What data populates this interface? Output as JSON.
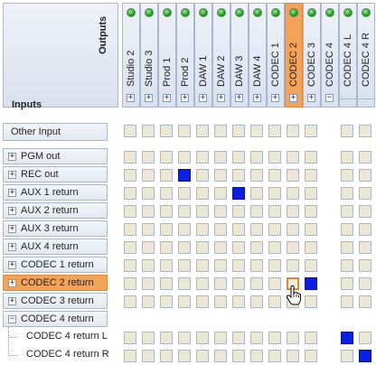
{
  "header": {
    "outputs_label": "Outputs",
    "inputs_label": "Inputs"
  },
  "outputs": [
    {
      "label": "Studio 2",
      "toggle": "+",
      "highlight": false
    },
    {
      "label": "Studio 3",
      "toggle": "+",
      "highlight": false
    },
    {
      "label": "Prod 1",
      "toggle": "+",
      "highlight": false
    },
    {
      "label": "Prod 2",
      "toggle": "+",
      "highlight": false
    },
    {
      "label": "DAW 1",
      "toggle": "+",
      "highlight": false
    },
    {
      "label": "DAW 2",
      "toggle": "+",
      "highlight": false
    },
    {
      "label": "DAW 3",
      "toggle": "+",
      "highlight": false
    },
    {
      "label": "DAW 4",
      "toggle": "+",
      "highlight": false
    },
    {
      "label": "CODEC 1",
      "toggle": "+",
      "highlight": false
    },
    {
      "label": "CODEC 2",
      "toggle": "+",
      "highlight": true
    },
    {
      "label": "CODEC 3",
      "toggle": "+",
      "highlight": false
    },
    {
      "label": "CODEC 4",
      "toggle": "−",
      "highlight": false
    },
    {
      "label": "CODEC 4 L",
      "toggle": "",
      "highlight": false
    },
    {
      "label": "CODEC 4 R",
      "toggle": "",
      "highlight": false
    }
  ],
  "other_input": {
    "label": "Other Input"
  },
  "inputs": [
    {
      "label": "PGM out",
      "toggle": "+",
      "highlight": false
    },
    {
      "label": "REC out",
      "toggle": "+",
      "highlight": false
    },
    {
      "label": "AUX 1 return",
      "toggle": "+",
      "highlight": false
    },
    {
      "label": "AUX 2 return",
      "toggle": "+",
      "highlight": false
    },
    {
      "label": "AUX 3 return",
      "toggle": "+",
      "highlight": false
    },
    {
      "label": "AUX 4 return",
      "toggle": "+",
      "highlight": false
    },
    {
      "label": "CODEC 1 return",
      "toggle": "+",
      "highlight": false
    },
    {
      "label": "CODEC 2 return",
      "toggle": "+",
      "highlight": true
    },
    {
      "label": "CODEC 3 return",
      "toggle": "+",
      "highlight": false
    },
    {
      "label": "CODEC 4 return",
      "toggle": "−",
      "highlight": false
    },
    {
      "label": "CODEC 4 return L",
      "toggle": "",
      "highlight": false
    },
    {
      "label": "CODEC 4 return R",
      "toggle": "",
      "highlight": false
    }
  ],
  "connections": [
    {
      "input": "REC out",
      "output": "Prod 2"
    },
    {
      "input": "AUX 1 return",
      "output": "DAW 3"
    },
    {
      "input": "CODEC 2 return",
      "output": "CODEC 3"
    },
    {
      "input": "CODEC 4 return L",
      "output": "CODEC 4 L"
    },
    {
      "input": "CODEC 4 return R",
      "output": "CODEC 4 R"
    }
  ],
  "selected_cell": {
    "input": "CODEC 2 return",
    "output": "CODEC 2"
  },
  "colors": {
    "connected": "#0a1ee6",
    "highlight": "#f3a25a",
    "led": "#19a019"
  }
}
